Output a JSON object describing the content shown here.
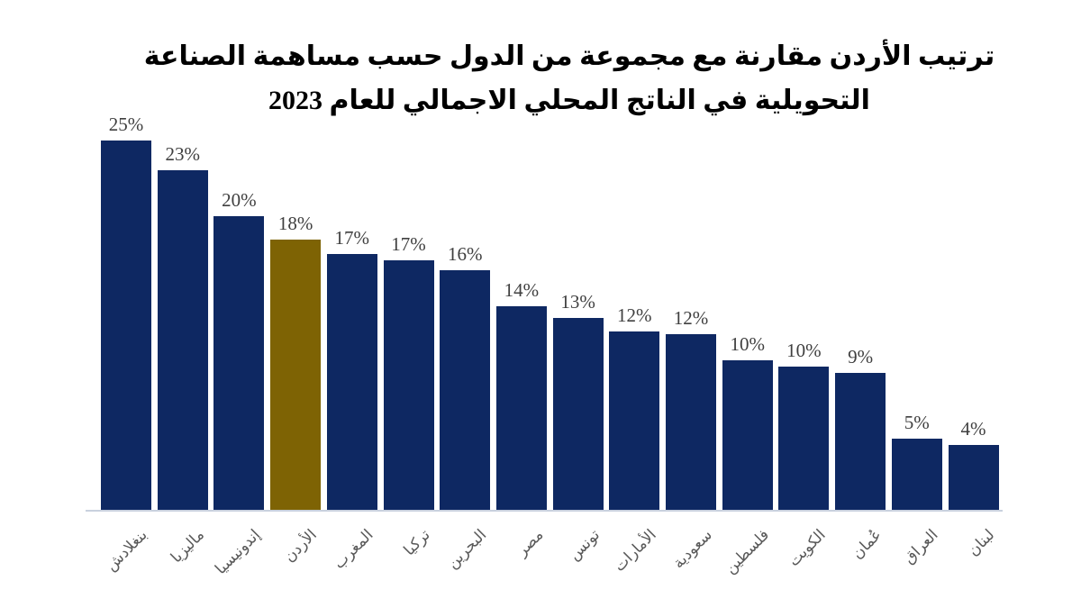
{
  "title": {
    "line1": "ترتيب الأردن مقارنة مع مجموعة من الدول حسب مساهمة الصناعة",
    "line2": "التحويلية في الناتج المحلي الاجمالي للعام 2023"
  },
  "colors": {
    "bar": "#0e2862",
    "highlight": "#7e6304",
    "axis_line": "#c9d1de",
    "value_label": "#3f3f3f",
    "axis_label": "#595959",
    "title": "#000000",
    "background": "#ffffff"
  },
  "chart_data": {
    "type": "bar",
    "title": "ترتيب الأردن مقارنة مع مجموعة من الدول حسب مساهمة الصناعة التحويلية في الناتج المحلي الاجمالي للعام 2023",
    "xlabel": "",
    "ylabel": "",
    "categories": [
      "بنغلادش",
      "ماليزيا",
      "إندونيسيا",
      "الأردن",
      "المغرب",
      "تركيا",
      "البحرين",
      "مصر",
      "تونس",
      "الأمارات",
      "سعودية",
      "فلسطين",
      "الكويت",
      "عُمان",
      "العراق",
      "لبنان"
    ],
    "ids": [
      "bangladesh",
      "malaysia",
      "indonesia",
      "jordan",
      "morocco",
      "turkey",
      "bahrain",
      "egypt",
      "tunisia",
      "uae",
      "saudi-arabia",
      "palestine",
      "kuwait",
      "oman",
      "iraq",
      "lebanon"
    ],
    "values": [
      25,
      23,
      20,
      18,
      17,
      17,
      16,
      14,
      13,
      12,
      12,
      10,
      10,
      9,
      5,
      4
    ],
    "value_labels": [
      "25%",
      "23%",
      "20%",
      "18%",
      "17%",
      "17%",
      "16%",
      "14%",
      "13%",
      "12%",
      "12%",
      "10%",
      "10%",
      "9%",
      "5%",
      "4%"
    ],
    "values_precise": [
      25.0,
      23.0,
      19.9,
      18.3,
      17.3,
      16.9,
      16.2,
      13.8,
      13.0,
      12.1,
      11.9,
      10.1,
      9.7,
      9.3,
      4.8,
      4.4
    ],
    "highlight_index": 3,
    "ylim": [
      0,
      26
    ],
    "grid": false,
    "legend": false,
    "y_axis_visible": false,
    "x_label_rotation_deg": 45,
    "data_labels": true
  }
}
